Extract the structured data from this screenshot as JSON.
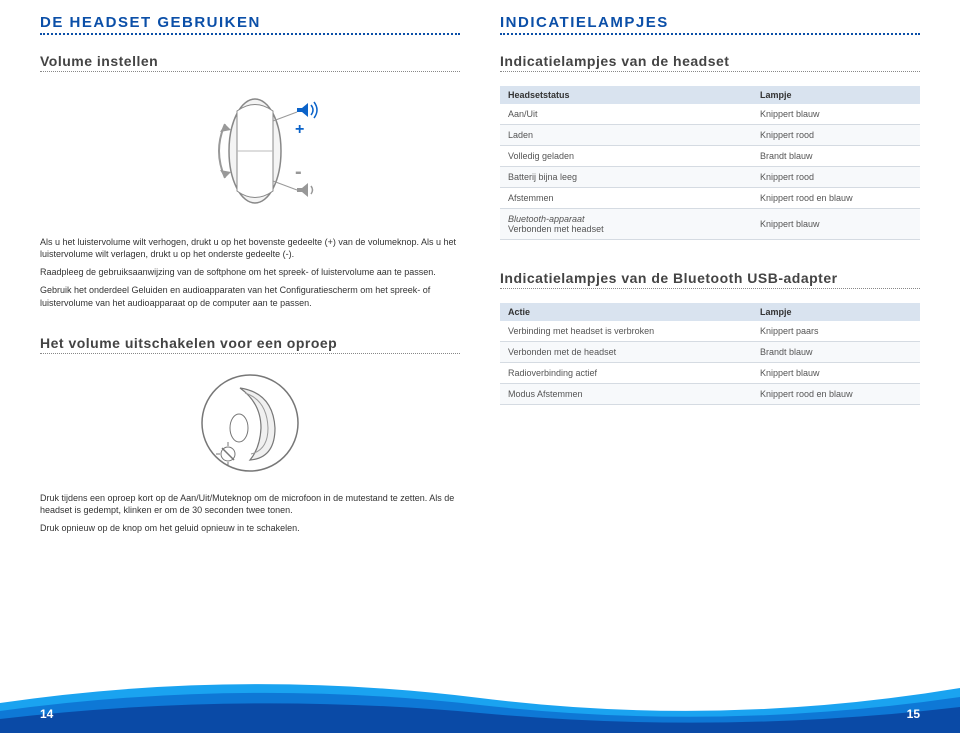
{
  "left": {
    "sectionHeader": "DE HEADSET GEBRUIKEN",
    "sub1": "Volume instellen",
    "para1": "Als u het luistervolume wilt verhogen, drukt u op het bovenste gedeelte (+) van de volumeknop. Als u het luistervolume wilt verlagen, drukt u op het onderste gedeelte (-).",
    "para2": "Raadpleeg de gebruiksaanwijzing van de softphone om het spreek- of luistervolume aan te passen.",
    "para3": "Gebruik het onderdeel Geluiden en audioapparaten van het Configuratiescherm om het spreek- of luistervolume van het audioapparaat op de computer aan te passen.",
    "sub2": "Het volume uitschakelen voor een oproep",
    "para4": "Druk tijdens een oproep kort op de Aan/Uit/Muteknop om de microfoon in de mutestand te zetten. Als de headset is gedempt, klinken er om de 30 seconden twee tonen.",
    "para5": "Druk opnieuw op de knop om het geluid opnieuw in te schakelen.",
    "illu": {
      "plus": "+",
      "minus": "-"
    }
  },
  "right": {
    "sectionHeader": "INDICATIELAMPJES",
    "sub1": "Indicatielampjes van de headset",
    "table1": {
      "col1": "Headsetstatus",
      "col2": "Lampje",
      "rows": [
        [
          "Aan/Uit",
          "Knippert blauw"
        ],
        [
          "Laden",
          "Knippert rood"
        ],
        [
          "Volledig geladen",
          "Brandt blauw"
        ],
        [
          "Batterij bijna leeg",
          "Knippert rood"
        ],
        [
          "Afstemmen",
          "Knippert rood en blauw"
        ],
        [
          "Bluetooth-apparaat\nVerbonden met headset",
          "Knippert blauw"
        ]
      ]
    },
    "sub2": "Indicatielampjes van de Bluetooth USB-adapter",
    "table2": {
      "col1": "Actie",
      "col2": "Lampje",
      "rows": [
        [
          "Verbinding met headset is verbroken",
          "Knippert paars"
        ],
        [
          "Verbonden met de headset",
          "Brandt blauw"
        ],
        [
          "Radioverbinding actief",
          "Knippert blauw"
        ],
        [
          "Modus Afstemmen",
          "Knippert rood en blauw"
        ]
      ]
    }
  },
  "pageLeft": "14",
  "pageRight": "15",
  "colors": {
    "wave1": "#0a4aa6",
    "wave2": "#0e78d6",
    "wave3": "#1aa3f0"
  }
}
